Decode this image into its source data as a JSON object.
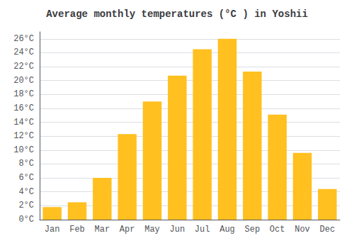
{
  "chart_data": {
    "type": "bar",
    "title": "Average monthly temperatures (°C ) in Yoshii",
    "categories": [
      "Jan",
      "Feb",
      "Mar",
      "Apr",
      "May",
      "Jun",
      "Jul",
      "Aug",
      "Sep",
      "Oct",
      "Nov",
      "Dec"
    ],
    "values": [
      1.8,
      2.5,
      6.0,
      12.3,
      17.0,
      20.7,
      24.5,
      26.0,
      21.3,
      15.1,
      9.6,
      4.4
    ],
    "color": "#FFC020",
    "ylim": [
      0,
      27
    ],
    "yticks": [
      {
        "value": 0,
        "label": "0°C"
      },
      {
        "value": 2,
        "label": "2°C"
      },
      {
        "value": 4,
        "label": "4°C"
      },
      {
        "value": 6,
        "label": "6°C"
      },
      {
        "value": 8,
        "label": "8°C"
      },
      {
        "value": 10,
        "label": "10°C"
      },
      {
        "value": 12,
        "label": "12°C"
      },
      {
        "value": 14,
        "label": "14°C"
      },
      {
        "value": 16,
        "label": "16°C"
      },
      {
        "value": 18,
        "label": "18°C"
      },
      {
        "value": 20,
        "label": "20°C"
      },
      {
        "value": 22,
        "label": "22°C"
      },
      {
        "value": 24,
        "label": "24°C"
      },
      {
        "value": 26,
        "label": "26°C"
      }
    ],
    "grid": true
  }
}
